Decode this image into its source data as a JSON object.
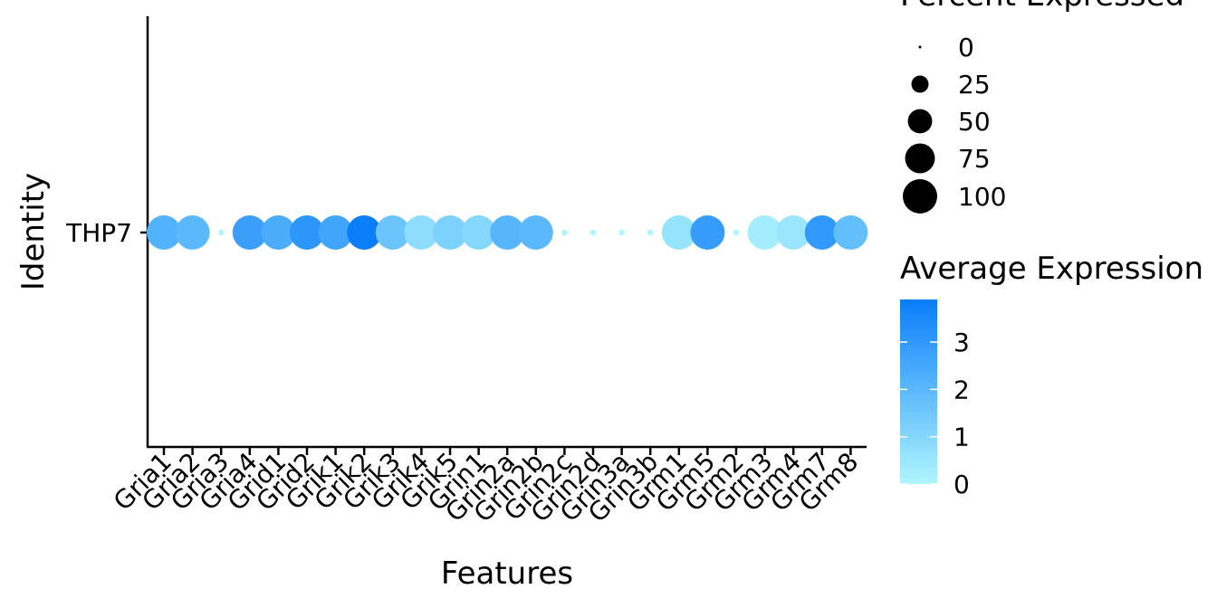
{
  "chart_data": {
    "type": "scatter",
    "subtype": "dot-plot",
    "xlabel": "Features",
    "ylabel": "Identity",
    "identities": [
      "THP7"
    ],
    "features": [
      "Gria1",
      "Gria2",
      "Gria3",
      "Gria4",
      "Grid1",
      "Grid2",
      "Grik1",
      "Grik2",
      "Grik3",
      "Grik4",
      "Grik5",
      "Grin1",
      "Grin2a",
      "Grin2b",
      "Grin2c",
      "Grin2d",
      "Grin3a",
      "Grin3b",
      "Grm1",
      "Grm5",
      "Grm2",
      "Grm3",
      "Grm4",
      "Grm7",
      "Grm8"
    ],
    "series": [
      {
        "identity": "THP7",
        "avg_expression": [
          2.2,
          2.0,
          0.0,
          2.8,
          2.4,
          3.1,
          2.6,
          3.9,
          1.6,
          0.8,
          1.2,
          1.0,
          2.1,
          2.0,
          0.0,
          0.0,
          0.0,
          0.0,
          0.6,
          2.9,
          0.0,
          0.3,
          0.5,
          3.0,
          1.8
        ],
        "pct_expressed": [
          100,
          100,
          3,
          100,
          100,
          100,
          100,
          100,
          100,
          100,
          100,
          100,
          100,
          100,
          3,
          3,
          3,
          3,
          100,
          100,
          3,
          100,
          100,
          100,
          100
        ]
      }
    ],
    "size_legend": {
      "title": "Percent Expressed",
      "labels": [
        "0",
        "25",
        "50",
        "75",
        "100"
      ],
      "values": [
        0,
        25,
        50,
        75,
        100
      ]
    },
    "color_legend": {
      "title": "Average Expression",
      "labels": [
        "0",
        "1",
        "2",
        "3"
      ],
      "values": [
        0,
        1,
        2,
        3
      ],
      "range": [
        0,
        3.9
      ],
      "low_color": "#B0F6FF",
      "high_color": "#0A7DF9"
    },
    "grid": false
  }
}
